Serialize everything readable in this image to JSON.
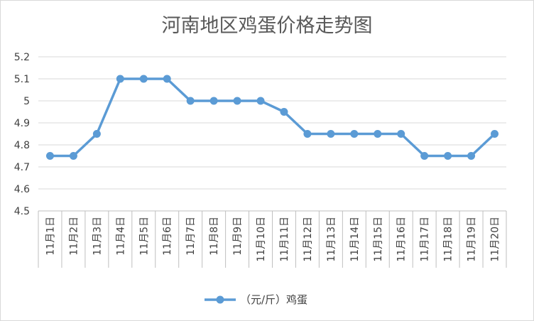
{
  "chart_data": {
    "type": "line",
    "title": "河南地区鸡蛋价格走势图",
    "xlabel": "",
    "ylabel": "",
    "categories": [
      "11月1日",
      "11月2日",
      "11月3日",
      "11月4日",
      "11月5日",
      "11月6日",
      "11月7日",
      "11月8日",
      "11月9日",
      "11月10日",
      "11月11日",
      "11月12日",
      "11月13日",
      "11月14日",
      "11月15日",
      "11月16日",
      "11月17日",
      "11月18日",
      "11月19日",
      "11月20日"
    ],
    "series": [
      {
        "name": "（元/斤）鸡蛋",
        "values": [
          4.75,
          4.75,
          4.85,
          5.1,
          5.1,
          5.1,
          5.0,
          5.0,
          5.0,
          5.0,
          4.95,
          4.85,
          4.85,
          4.85,
          4.85,
          4.85,
          4.75,
          4.75,
          4.75,
          4.85
        ],
        "color": "#5b9bd5"
      }
    ],
    "ylim": [
      4.5,
      5.2
    ],
    "yticks": [
      "4.5",
      "4.6",
      "4.7",
      "4.8",
      "4.9",
      "5",
      "5.1",
      "5.2"
    ],
    "grid": true,
    "legend_position": "bottom"
  }
}
